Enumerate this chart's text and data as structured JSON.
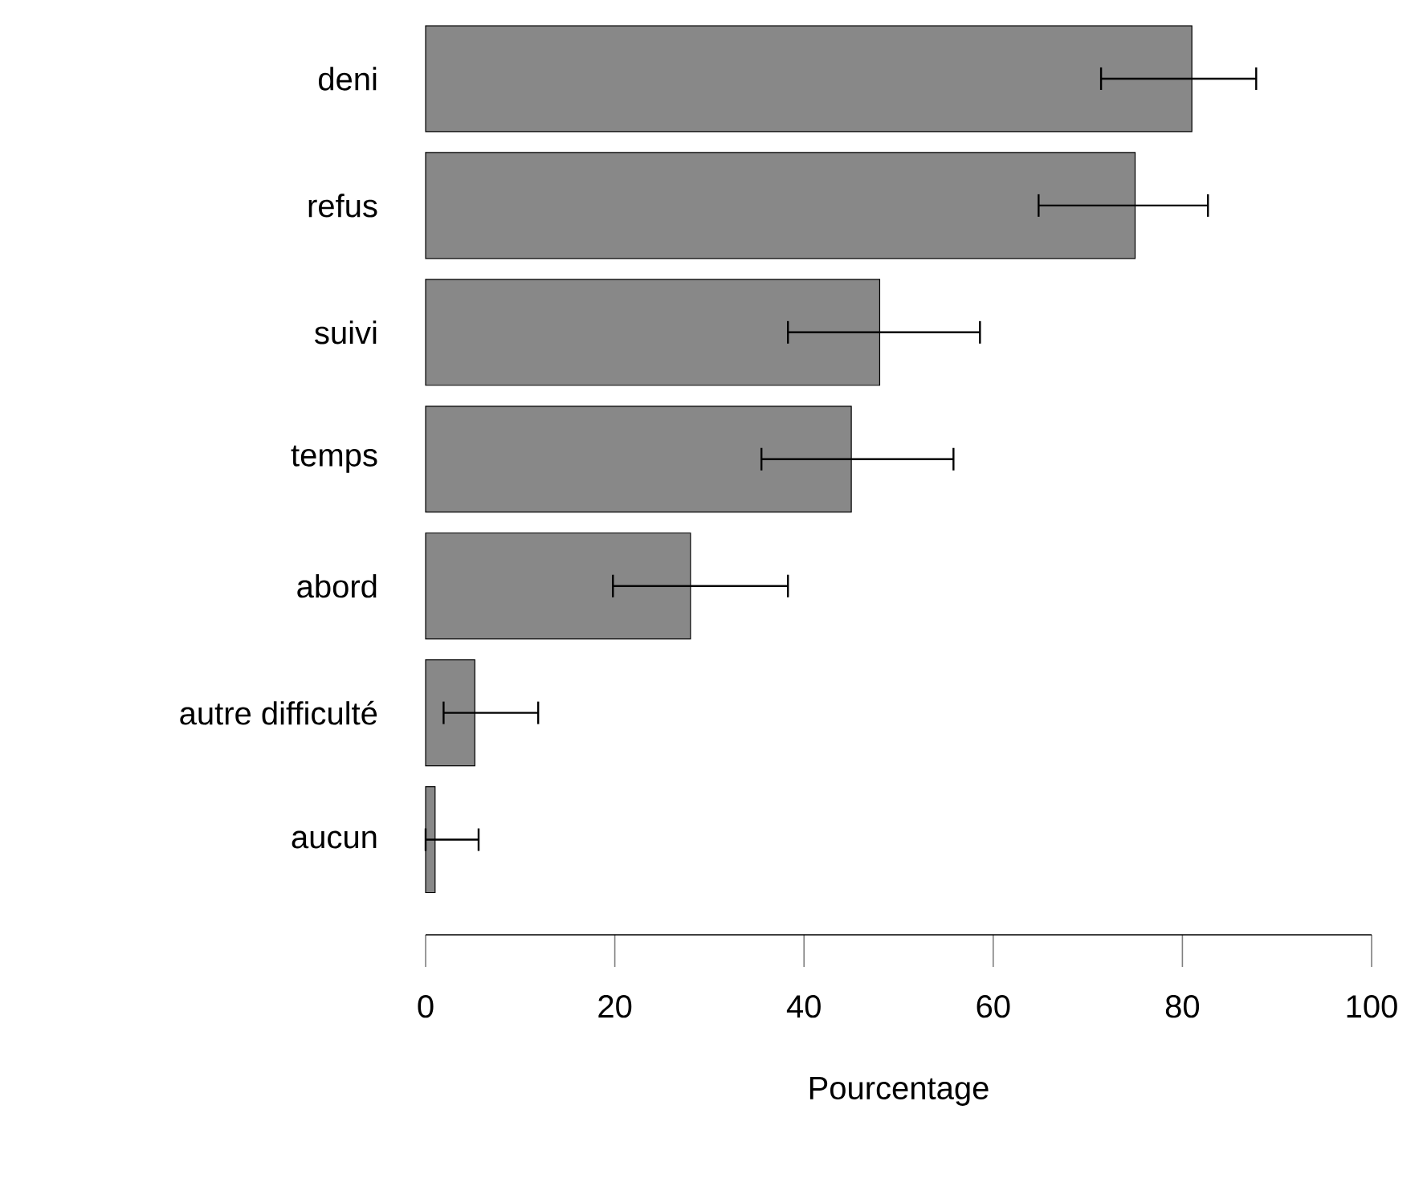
{
  "chart_data": {
    "type": "bar",
    "orientation": "horizontal",
    "xlabel": "Pourcentage",
    "categories": [
      "deni",
      "refus",
      "suivi",
      "temps",
      "abord",
      "autre difficulté",
      "aucun"
    ],
    "values": [
      81,
      75,
      48,
      45,
      28,
      5.2,
      1
    ],
    "errors": [
      [
        71.4,
        87.8
      ],
      [
        64.8,
        82.7
      ],
      [
        38.3,
        58.6
      ],
      [
        35.5,
        55.8
      ],
      [
        19.8,
        38.3
      ],
      [
        1.9,
        11.9
      ],
      [
        0,
        5.6
      ]
    ],
    "color": "#888888",
    "xlim": [
      0,
      100
    ],
    "xticks": [
      0,
      20,
      40,
      60,
      80,
      100
    ]
  }
}
